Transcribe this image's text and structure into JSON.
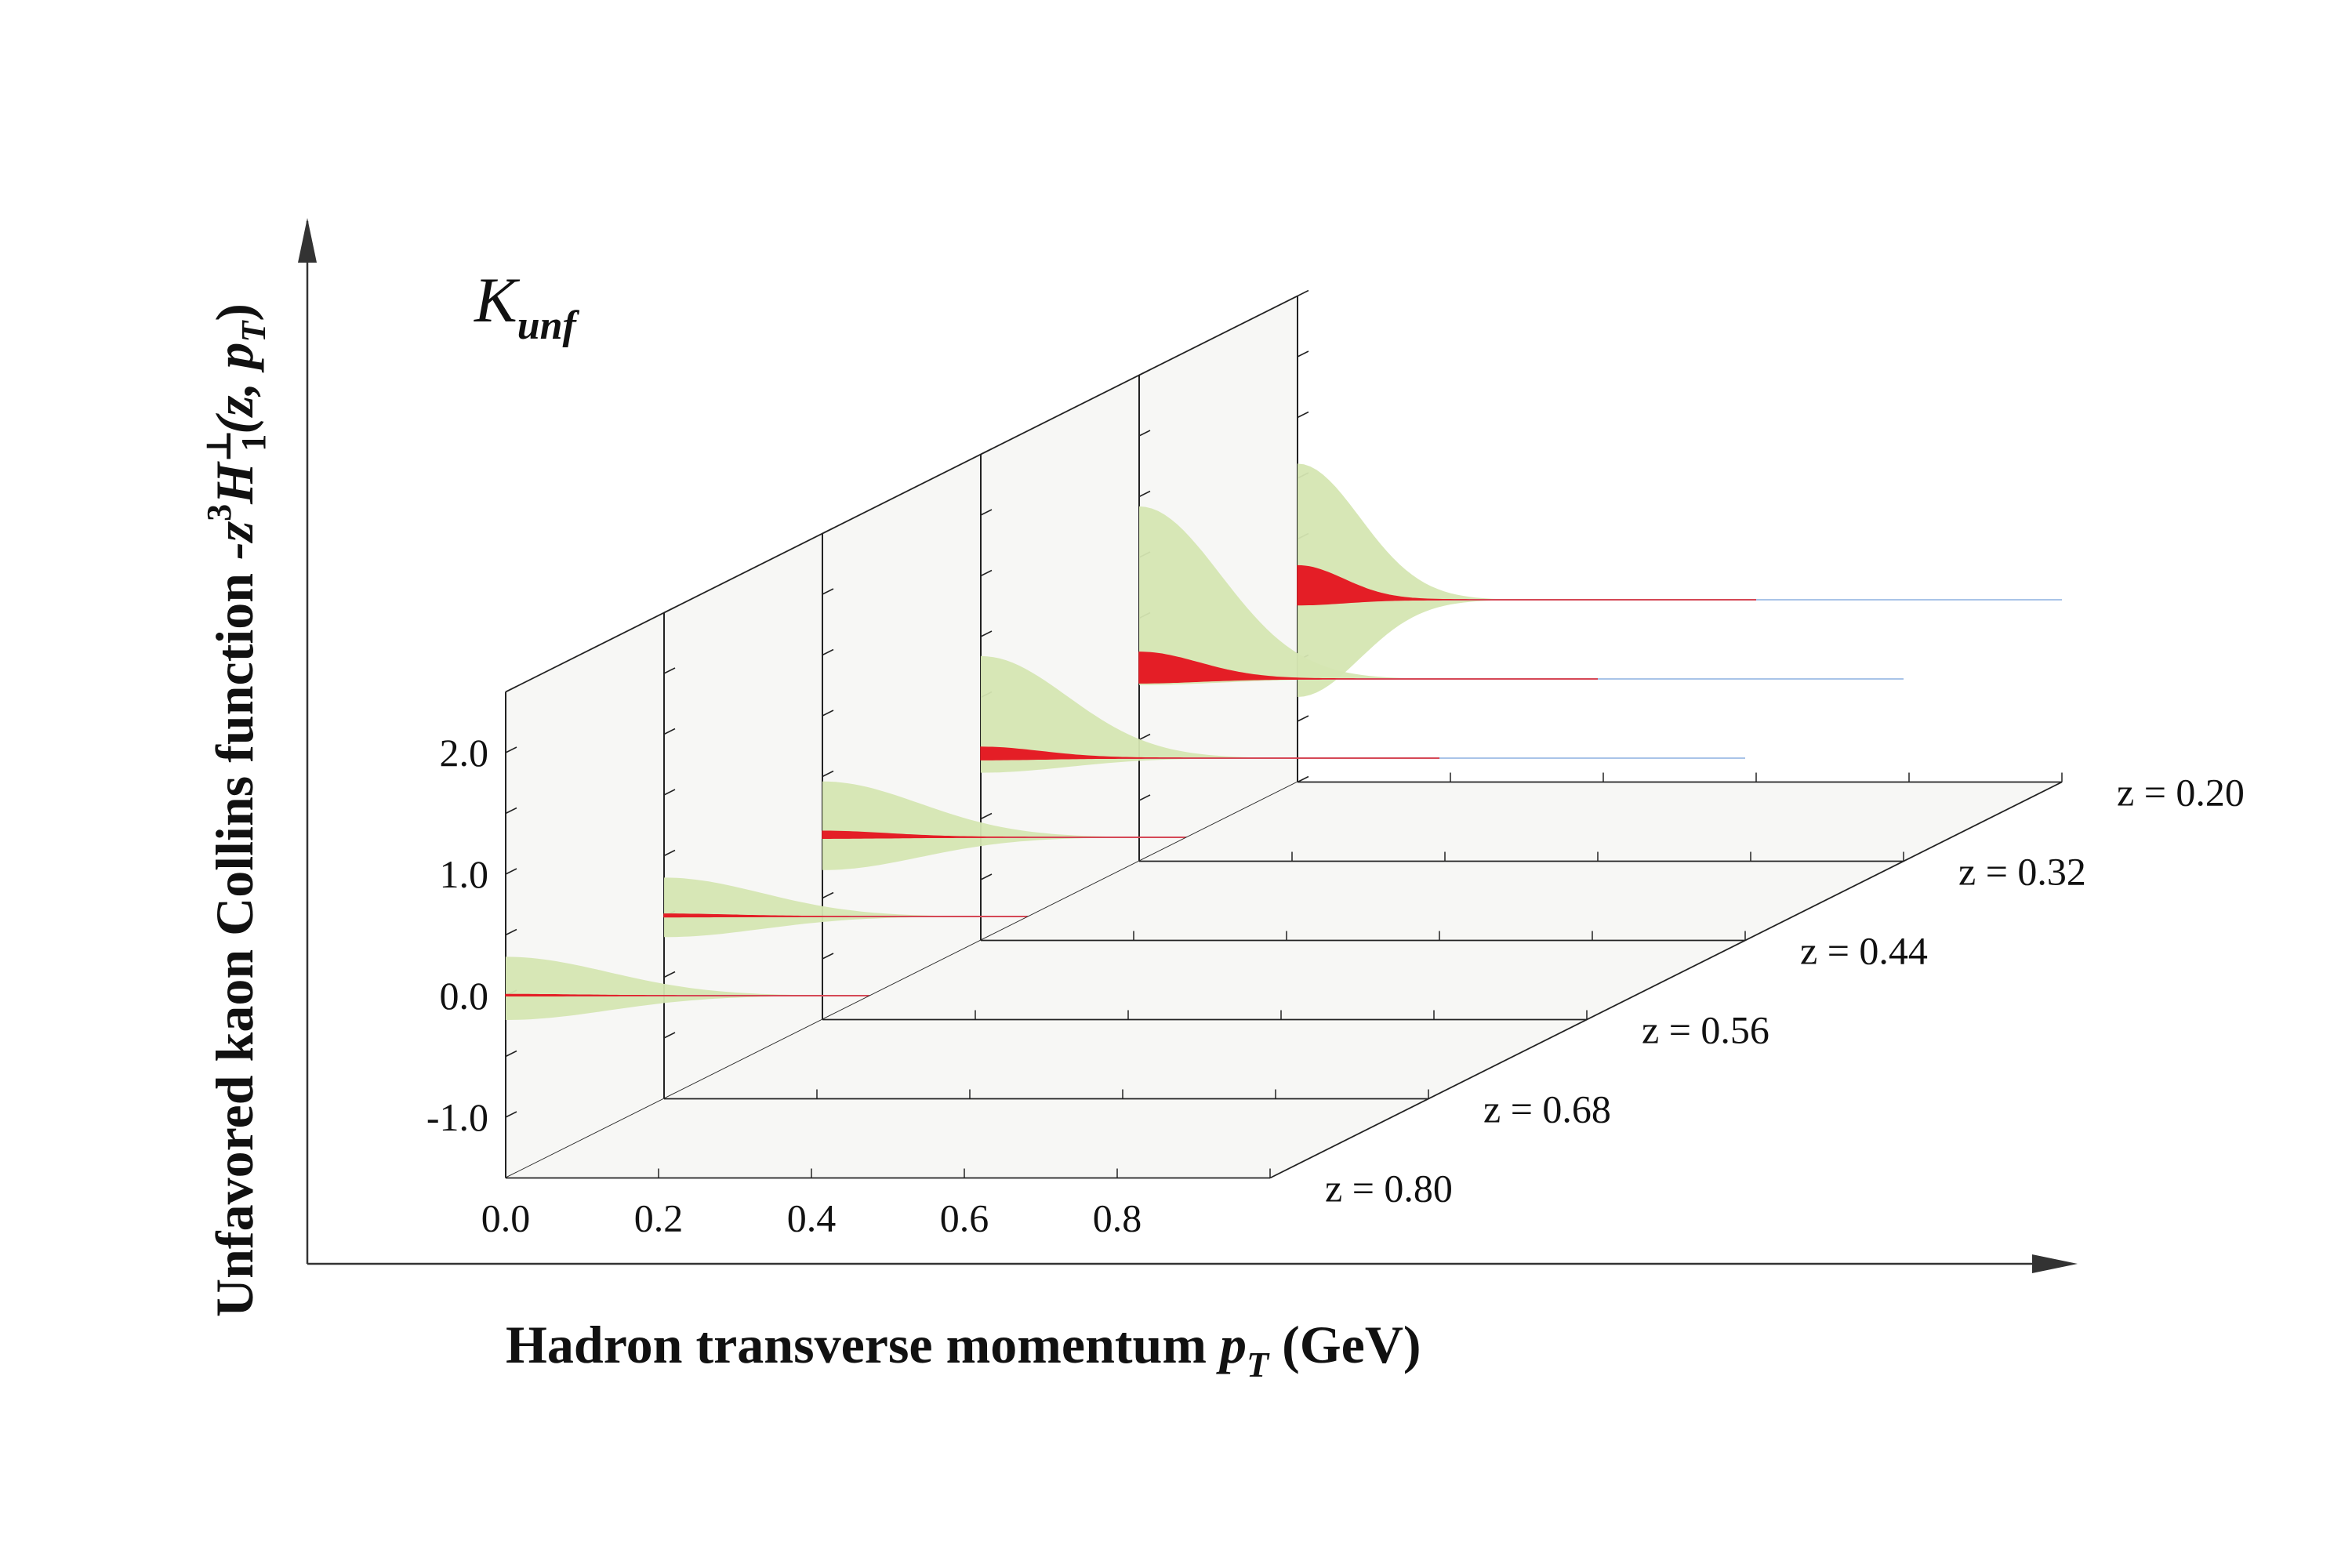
{
  "chart_data": {
    "type": "area",
    "label": "K",
    "label_subscript": "unf",
    "xlabel": "Hadron transverse momentum",
    "xlabel_var": "p",
    "xlabel_var_sub": "T",
    "xlabel_unit": "(GeV)",
    "ylabel": "Unfavored kaon Collins function",
    "ylabel_formula": {
      "prefix": "-z",
      "prefix_sup": "3",
      "func": "H",
      "func_sup": "⊥",
      "func_sub": "1",
      "args_open": "(z, ",
      "arg_var": "p",
      "arg_sub": "T",
      "args_close": ")"
    },
    "xlim": [
      0.0,
      1.0
    ],
    "ylim": [
      -1.5,
      2.5
    ],
    "x_ticks": [
      "0.0",
      "0.2",
      "0.4",
      "0.6",
      "0.8"
    ],
    "y_ticks": [
      "2.0",
      "1.0",
      "0.0",
      "-1.0"
    ],
    "z_labels": [
      "z = 0.20",
      "z = 0.32",
      "z = 0.44",
      "z = 0.56",
      "z = 0.68",
      "z = 0.80"
    ],
    "colors": {
      "band": "#d5e6b2",
      "central": "#e41e26",
      "zero_line": "#a9c4e8",
      "plane": "#f7f7f5",
      "axis": "#222222"
    },
    "series": [
      {
        "z": 0.8,
        "center_peak": 0.01,
        "center_width": 0.12,
        "band_upper": 0.32,
        "band_lower": -0.2,
        "band_width": 0.19
      },
      {
        "z": 0.68,
        "center_peak": 0.02,
        "center_width": 0.12,
        "band_upper": 0.32,
        "band_lower": -0.17,
        "band_width": 0.18
      },
      {
        "z": 0.56,
        "center_peak": 0.05,
        "center_width": 0.12,
        "band_upper": 0.46,
        "band_lower": -0.27,
        "band_width": 0.18
      },
      {
        "z": 0.44,
        "center_peak": 0.09,
        "center_width": 0.11,
        "band_upper": 0.84,
        "band_lower": -0.12,
        "band_width": 0.16
      },
      {
        "z": 0.32,
        "center_peak": 0.22,
        "center_width": 0.11,
        "band_upper": 1.42,
        "band_lower": -0.05,
        "band_width": 0.15
      },
      {
        "z": 0.2,
        "center_peak": 0.28,
        "center_width": 0.085,
        "band_upper": 1.12,
        "band_lower": -0.8,
        "band_width": 0.115
      }
    ]
  }
}
